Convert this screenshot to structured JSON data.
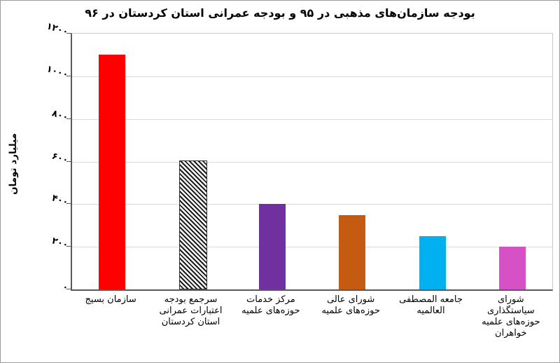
{
  "chart_data": {
    "type": "bar",
    "title": "بودجه سازمان‌های مذهبی در ۹۵ و بودجه عمرانی استان کردستان در ۹۶",
    "xlabel": "",
    "ylabel": "میلیارد تومان",
    "ylim": [
      0,
      1200
    ],
    "grid": "horizontal",
    "legend": "none",
    "direction": "rtl",
    "unit": "میلیارد تومان",
    "yticks": [
      {
        "value": 0,
        "label": "۰"
      },
      {
        "value": 200,
        "label": "۲۰۰"
      },
      {
        "value": 400,
        "label": "۴۰۰"
      },
      {
        "value": 600,
        "label": "۶۰۰"
      },
      {
        "value": 800,
        "label": "۸۰۰"
      },
      {
        "value": 1000,
        "label": "۱۰۰۰"
      },
      {
        "value": 1200,
        "label": "۱۲۰۰"
      }
    ],
    "bars": [
      {
        "category": "سازمان بسیج",
        "label_lines": "سازمان بسیج",
        "value": 1100,
        "fill": "#FF0000",
        "pattern": "solid"
      },
      {
        "category": "سرجمع بودجه اعتبارات عمرانی استان کردستان",
        "label_lines": "سرجمع بودجه\nاعتبارات عمرانی\nاستان کردستان",
        "value": 600,
        "fill": "#FFFFFF",
        "pattern": "diagonal-hatch",
        "hatch_color": "#1C1C1C"
      },
      {
        "category": "مرکز خدمات حوزه‌های علمیه",
        "label_lines": "مرکز خدمات\nحوزه‌های علمیه",
        "value": 400,
        "fill": "#7030A0",
        "pattern": "solid"
      },
      {
        "category": "شورای عالی حوزه‌های علمیه",
        "label_lines": "شورای عالی\nحوزه‌های علمیه",
        "value": 350,
        "fill": "#C55A11",
        "pattern": "solid"
      },
      {
        "category": "جامعه المصطفی العالمیه",
        "label_lines": "جامعه المصطفی\nالعالمیه",
        "value": 250,
        "fill": "#00B0F0",
        "pattern": "solid"
      },
      {
        "category": "شورای سیاستگذاری حوزه‌های علمیه خواهران",
        "label_lines": "شورای\nسیاستگذاری\nحوزه‌های علمیه\nخواهران",
        "value": 200,
        "fill": "#D551C5",
        "pattern": "solid"
      }
    ]
  }
}
